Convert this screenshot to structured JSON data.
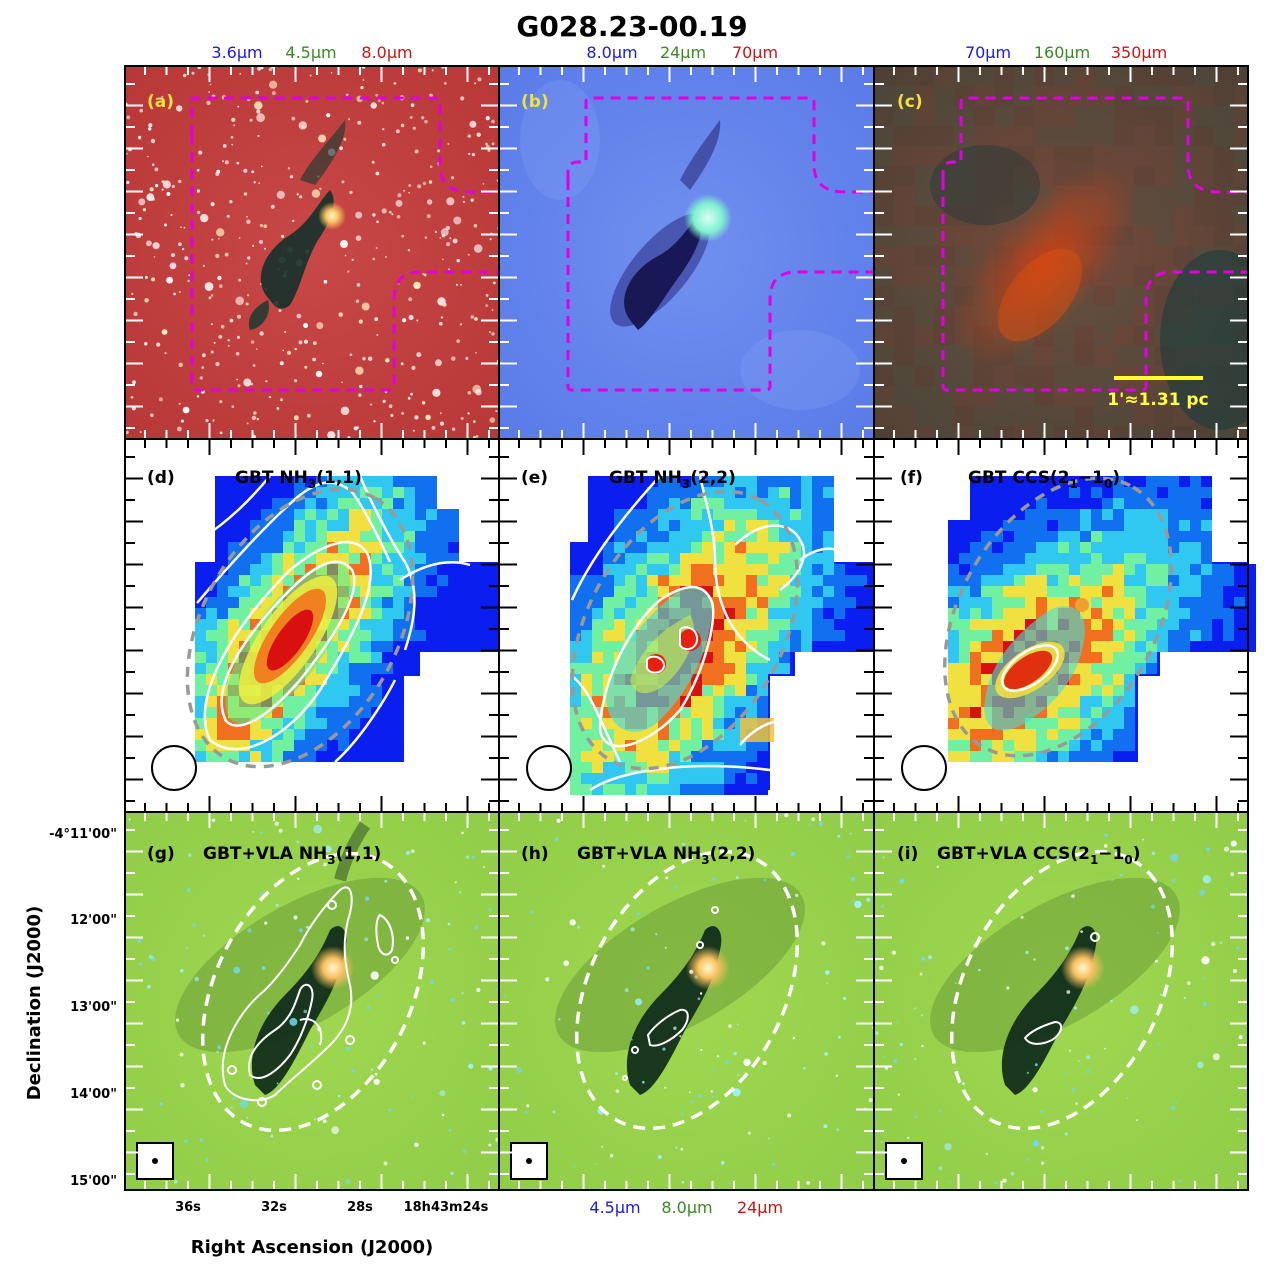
{
  "figure": {
    "title": "G028.23-00.19",
    "top_bands": [
      {
        "labels": [
          "3.6μm",
          "4.5μm",
          "8.0μm"
        ]
      },
      {
        "labels": [
          "8.0μm",
          "24μm",
          "70μm"
        ]
      },
      {
        "labels": [
          "70μm",
          "160μm",
          "350μm"
        ]
      }
    ],
    "bottom_bands": {
      "labels": [
        "4.5μm",
        "8.0μm",
        "24μm"
      ]
    },
    "band_colors": [
      "#1a1adc",
      "#3a8a22",
      "#cc1414"
    ],
    "panels": {
      "a": "(a)",
      "b": "(b)",
      "c": "(c)",
      "d": "(d)",
      "d_title": "GBT NH3(1,1)",
      "e": "(e)",
      "e_title": "GBT NH3(2,2)",
      "f": "(f)",
      "f_title": "GBT CCS(21−10)",
      "g": "(g)",
      "g_title": "GBT+VLA NH3(1,1)",
      "h": "(h)",
      "h_title": "GBT+VLA NH3(2,2)",
      "i": "(i)",
      "i_title": "GBT+VLA CCS(21−10)"
    },
    "scale_bar": "1'≈1.31 pc",
    "yaxis": {
      "label": "Declination (J2000)",
      "ticks": [
        "-4°11'00\"",
        "12'00\"",
        "13'00\"",
        "14'00\"",
        "15'00\""
      ]
    },
    "xaxis": {
      "label": "Right Ascension (J2000)",
      "ticks": [
        "36s",
        "32s",
        "28s",
        "18h43m24s"
      ]
    }
  }
}
